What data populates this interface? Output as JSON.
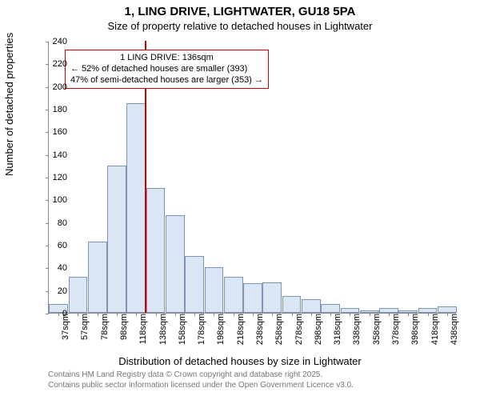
{
  "title": "1, LING DRIVE, LIGHTWATER, GU18 5PA",
  "subtitle": "Size of property relative to detached houses in Lightwater",
  "ylabel": "Number of detached properties",
  "xlabel": "Distribution of detached houses by size in Lightwater",
  "chart": {
    "type": "histogram",
    "ymax": 240,
    "ytick_step": 20,
    "bar_fill": "#dbe6f5",
    "bar_stroke": "#7d94b5",
    "background": "#ffffff",
    "categories": [
      "37sqm",
      "57sqm",
      "78sqm",
      "98sqm",
      "118sqm",
      "138sqm",
      "158sqm",
      "178sqm",
      "198sqm",
      "218sqm",
      "238sqm",
      "258sqm",
      "278sqm",
      "298sqm",
      "318sqm",
      "338sqm",
      "358sqm",
      "378sqm",
      "398sqm",
      "418sqm",
      "438sqm"
    ],
    "values": [
      8,
      32,
      63,
      130,
      185,
      110,
      86,
      50,
      40,
      32,
      26,
      27,
      15,
      12,
      8,
      4,
      2,
      4,
      2,
      4,
      6
    ],
    "marker_index": 5,
    "marker_color": "#cc0000"
  },
  "annotation": {
    "line1": "1 LING DRIVE: 136sqm",
    "line2": "← 52% of detached houses are smaller (393)",
    "line3": "47% of semi-detached houses are larger (353) →",
    "border_color": "#cc0000"
  },
  "footer": {
    "line1": "Contains HM Land Registry data © Crown copyright and database right 2025.",
    "line2": "Contains public sector information licensed under the Open Government Licence v3.0."
  }
}
